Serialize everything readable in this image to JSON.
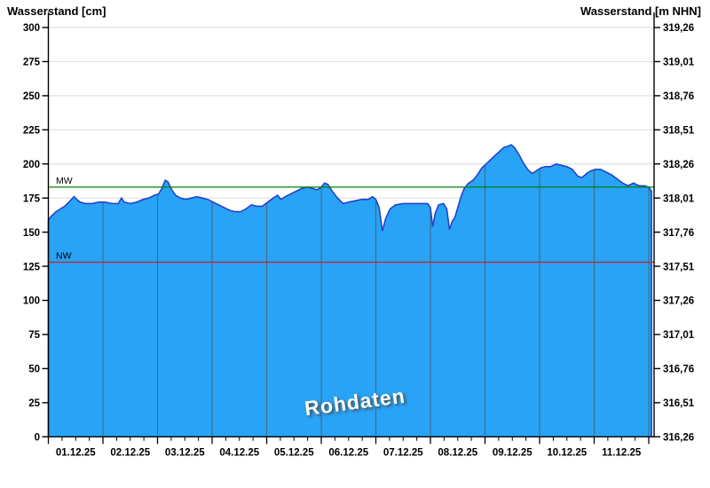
{
  "header": {
    "left_title": "Wasserstand [cm]",
    "right_title": "Wasserstand [m NHN]"
  },
  "colors": {
    "area_fill": "#29a3f5",
    "area_stroke": "#2244cc",
    "h_grid": "#e0e0e0",
    "day_grid": "#3f6b85",
    "axis": "#000000",
    "mw_line": "#008000",
    "nw_line": "#cc2222"
  },
  "chart_data": {
    "type": "area",
    "title": "Wasserstand",
    "watermark": "Rohdaten",
    "grid": true,
    "y_left": {
      "label": "Wasserstand [cm]",
      "min": 0,
      "max": 300,
      "step": 25
    },
    "y_right": {
      "label": "Wasserstand [m NHN]",
      "min": 316.26,
      "max": 319.26,
      "step": 0.25
    },
    "y_left_ticks": [
      "300",
      "275",
      "250",
      "225",
      "200",
      "175",
      "150",
      "125",
      "100",
      "75",
      "50",
      "25",
      "0"
    ],
    "y_right_ticks": [
      "319,26",
      "319,01",
      "318,76",
      "318,51",
      "318,26",
      "318,01",
      "317,76",
      "317,51",
      "317,26",
      "317,01",
      "316,76",
      "316,51",
      "316,26"
    ],
    "x_tick_labels": [
      "01.12.25",
      "02.12.25",
      "03.12.25",
      "04.12.25",
      "05.12.25",
      "06.12.25",
      "07.12.25",
      "08.12.25",
      "09.12.25",
      "10.12.25",
      "11.12.25"
    ],
    "x_days_shown": 11.1,
    "minor_ticks_per_day": 4,
    "reference_lines": [
      {
        "name": "MW",
        "value": 183
      },
      {
        "name": "NW",
        "value": 128
      }
    ],
    "series": [
      {
        "name": "Wasserstand Rohdaten",
        "unit": "cm",
        "points": [
          [
            0.0,
            159
          ],
          [
            0.06,
            162
          ],
          [
            0.14,
            165
          ],
          [
            0.22,
            167
          ],
          [
            0.3,
            169
          ],
          [
            0.4,
            173
          ],
          [
            0.47,
            176
          ],
          [
            0.52,
            174
          ],
          [
            0.58,
            172
          ],
          [
            0.68,
            171
          ],
          [
            0.8,
            171
          ],
          [
            0.92,
            172
          ],
          [
            1.04,
            172
          ],
          [
            1.16,
            171
          ],
          [
            1.28,
            171
          ],
          [
            1.34,
            175
          ],
          [
            1.39,
            172
          ],
          [
            1.5,
            171
          ],
          [
            1.62,
            172
          ],
          [
            1.74,
            174
          ],
          [
            1.84,
            175
          ],
          [
            1.94,
            177
          ],
          [
            2.02,
            178
          ],
          [
            2.08,
            182
          ],
          [
            2.14,
            188
          ],
          [
            2.19,
            187
          ],
          [
            2.26,
            181
          ],
          [
            2.33,
            177
          ],
          [
            2.42,
            175
          ],
          [
            2.52,
            174
          ],
          [
            2.62,
            175
          ],
          [
            2.72,
            176
          ],
          [
            2.82,
            175
          ],
          [
            2.92,
            174
          ],
          [
            3.02,
            172
          ],
          [
            3.12,
            170
          ],
          [
            3.22,
            168
          ],
          [
            3.32,
            166
          ],
          [
            3.42,
            165
          ],
          [
            3.52,
            165
          ],
          [
            3.62,
            167
          ],
          [
            3.72,
            170
          ],
          [
            3.82,
            169
          ],
          [
            3.92,
            169
          ],
          [
            4.02,
            172
          ],
          [
            4.12,
            175
          ],
          [
            4.2,
            177
          ],
          [
            4.26,
            174
          ],
          [
            4.34,
            176
          ],
          [
            4.44,
            178
          ],
          [
            4.54,
            180
          ],
          [
            4.64,
            182
          ],
          [
            4.74,
            183
          ],
          [
            4.84,
            182
          ],
          [
            4.92,
            181
          ],
          [
            5.0,
            183
          ],
          [
            5.06,
            186
          ],
          [
            5.12,
            185
          ],
          [
            5.2,
            180
          ],
          [
            5.3,
            175
          ],
          [
            5.4,
            171
          ],
          [
            5.5,
            172
          ],
          [
            5.62,
            173
          ],
          [
            5.74,
            174
          ],
          [
            5.86,
            174
          ],
          [
            5.94,
            176
          ],
          [
            6.0,
            174
          ],
          [
            6.06,
            168
          ],
          [
            6.12,
            151
          ],
          [
            6.18,
            160
          ],
          [
            6.26,
            167
          ],
          [
            6.36,
            170
          ],
          [
            6.5,
            171
          ],
          [
            6.65,
            171
          ],
          [
            6.8,
            171
          ],
          [
            6.95,
            171
          ],
          [
            7.0,
            168
          ],
          [
            7.04,
            154
          ],
          [
            7.09,
            164
          ],
          [
            7.15,
            170
          ],
          [
            7.24,
            171
          ],
          [
            7.3,
            167
          ],
          [
            7.35,
            152
          ],
          [
            7.4,
            158
          ],
          [
            7.45,
            161
          ],
          [
            7.5,
            168
          ],
          [
            7.56,
            176
          ],
          [
            7.62,
            182
          ],
          [
            7.7,
            186
          ],
          [
            7.78,
            188
          ],
          [
            7.86,
            192
          ],
          [
            7.94,
            197
          ],
          [
            8.02,
            200
          ],
          [
            8.1,
            203
          ],
          [
            8.18,
            206
          ],
          [
            8.26,
            209
          ],
          [
            8.34,
            212
          ],
          [
            8.42,
            213
          ],
          [
            8.48,
            214
          ],
          [
            8.54,
            212
          ],
          [
            8.62,
            207
          ],
          [
            8.7,
            201
          ],
          [
            8.78,
            196
          ],
          [
            8.86,
            193
          ],
          [
            8.94,
            195
          ],
          [
            9.02,
            197
          ],
          [
            9.1,
            198
          ],
          [
            9.2,
            198
          ],
          [
            9.3,
            200
          ],
          [
            9.4,
            199
          ],
          [
            9.5,
            198
          ],
          [
            9.6,
            196
          ],
          [
            9.7,
            191
          ],
          [
            9.78,
            190
          ],
          [
            9.86,
            193
          ],
          [
            9.94,
            195
          ],
          [
            10.02,
            196
          ],
          [
            10.12,
            196
          ],
          [
            10.22,
            194
          ],
          [
            10.32,
            192
          ],
          [
            10.42,
            189
          ],
          [
            10.52,
            186
          ],
          [
            10.62,
            184
          ],
          [
            10.72,
            186
          ],
          [
            10.82,
            184
          ],
          [
            10.92,
            184
          ],
          [
            11.0,
            183
          ],
          [
            11.05,
            180
          ]
        ]
      }
    ]
  }
}
